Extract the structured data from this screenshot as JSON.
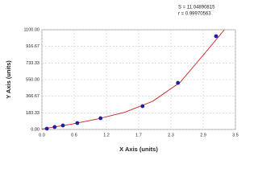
{
  "chart_data": {
    "type": "scatter",
    "annotations": [
      "S = 11.04890815",
      "r = 0.99970563"
    ],
    "xlabel": "X Axis (units)",
    "ylabel": "Y Axis (units)",
    "xlim": [
      0,
      3.5
    ],
    "xticks": [
      {
        "value": 0,
        "label": "0.0"
      },
      {
        "value": 0.583,
        "label": "0.6"
      },
      {
        "value": 1.167,
        "label": "1.2"
      },
      {
        "value": 1.75,
        "label": "1.7"
      },
      {
        "value": 2.333,
        "label": "2.3"
      },
      {
        "value": 2.917,
        "label": "2.9"
      },
      {
        "value": 3.5,
        "label": "3.5"
      }
    ],
    "ylim": [
      0,
      1100
    ],
    "yticks": [
      {
        "value": 0,
        "label": "0.00"
      },
      {
        "value": 183.33,
        "label": "183.33"
      },
      {
        "value": 366.67,
        "label": "366.67"
      },
      {
        "value": 550,
        "label": "550.00"
      },
      {
        "value": 733.33,
        "label": "733.33"
      },
      {
        "value": 916.67,
        "label": "916.67"
      },
      {
        "value": 1100,
        "label": "1100.00"
      }
    ],
    "grid": true,
    "series": [
      {
        "mode": "markers",
        "color": "#1f1f9e",
        "x": [
          0.09,
          0.23,
          0.38,
          0.64,
          1.06,
          1.82,
          2.46,
          3.15
        ],
        "values": [
          9,
          27,
          44,
          71,
          124,
          257,
          514,
          1029
        ]
      },
      {
        "mode": "line",
        "color": "#cc2222",
        "x": [
          0,
          0.5,
          1,
          1.5,
          2,
          2.5,
          3,
          3.3
        ],
        "values": [
          5,
          55,
          115,
          190,
          310,
          520,
          880,
          1100
        ]
      }
    ]
  }
}
